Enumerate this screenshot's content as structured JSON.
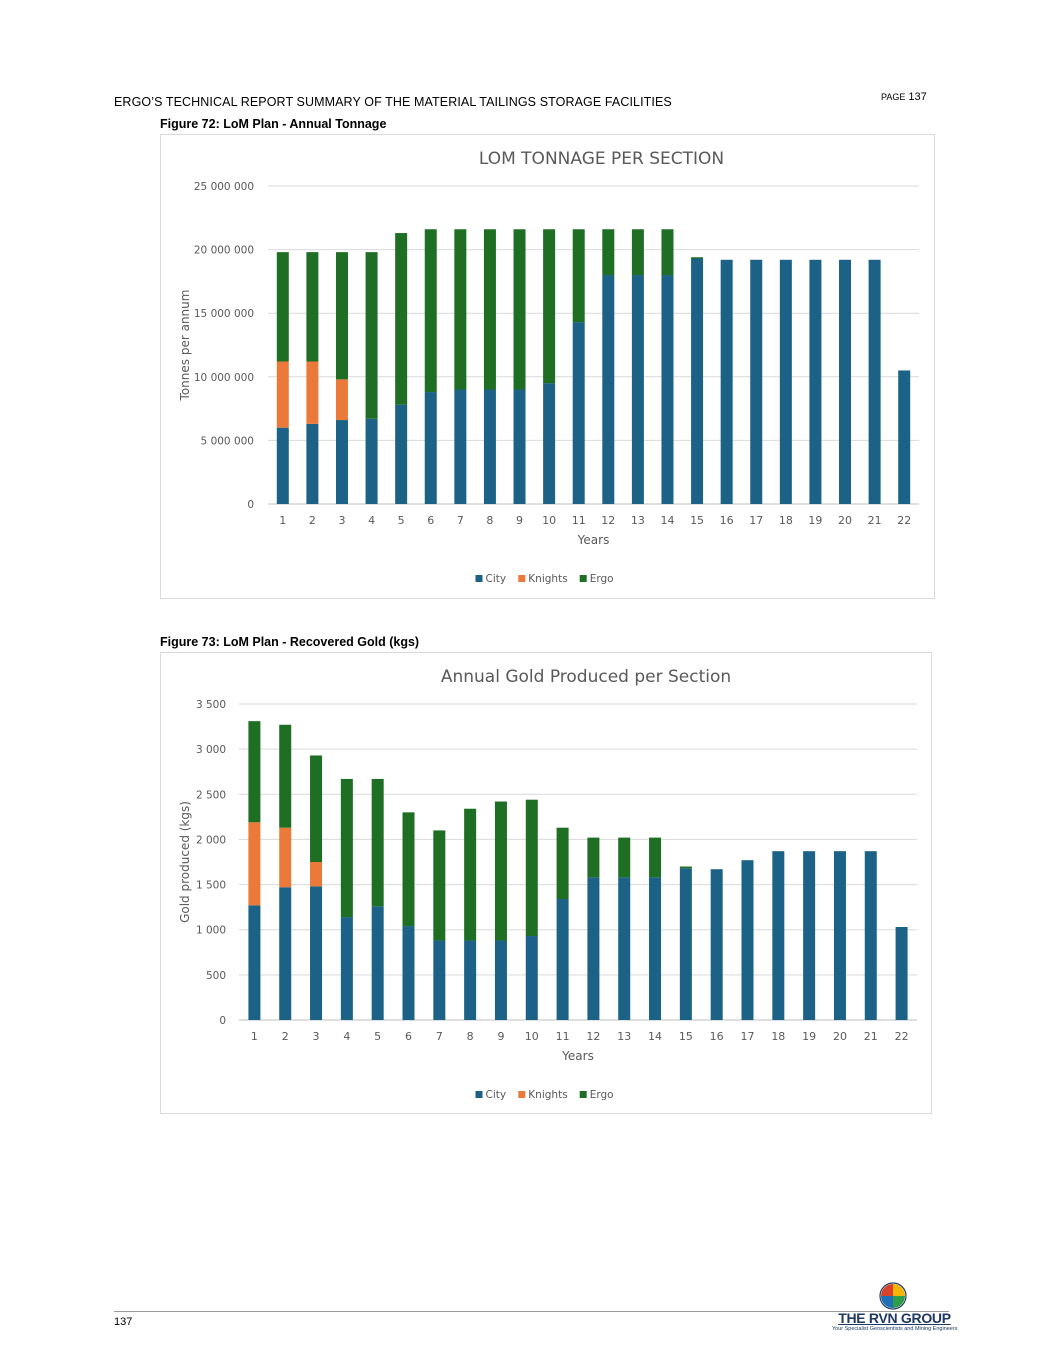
{
  "header": {
    "title": "ERGO’S TECHNICAL REPORT SUMMARY OF THE MATERIAL TAILINGS STORAGE FACILITIES",
    "page_word": "PAGE",
    "page_number": "137"
  },
  "footer": {
    "page_number": "137",
    "logo_text": "THE RVN GROUP",
    "logo_subtext": "Your Specialist Geoscientists and Mining Engineers"
  },
  "figures": [
    {
      "caption": "Figure 72:  LoM Plan - Annual Tonnage"
    },
    {
      "caption": "Figure 73:  LoM Plan - Recovered Gold (kgs)"
    }
  ],
  "colors": {
    "City": "#1b6286",
    "Knights": "#eb7a3a",
    "Ergo": "#1e6e23"
  },
  "chart_data": [
    {
      "type": "bar",
      "stacked": true,
      "title": "LOM TONNAGE PER SECTION",
      "xlabel": "Years",
      "ylabel": "Tonnes per annum",
      "ylim": [
        0,
        25000000
      ],
      "yticks": [
        "0",
        "5 000 000",
        "10 000 000",
        "15 000 000",
        "20 000 000",
        "25 000 000"
      ],
      "ytick_values": [
        0,
        5000000,
        10000000,
        15000000,
        20000000,
        25000000
      ],
      "categories": [
        "1",
        "2",
        "3",
        "4",
        "5",
        "6",
        "7",
        "8",
        "9",
        "10",
        "11",
        "12",
        "13",
        "14",
        "15",
        "16",
        "17",
        "18",
        "19",
        "20",
        "21",
        "22"
      ],
      "legend_position": "bottom",
      "grid": true,
      "series": [
        {
          "name": "City",
          "values": [
            6000000,
            6300000,
            6600000,
            6700000,
            7800000,
            8800000,
            9000000,
            9000000,
            9000000,
            9500000,
            14300000,
            18000000,
            18000000,
            18000000,
            19300000,
            19200000,
            19200000,
            19200000,
            19200000,
            19200000,
            19200000,
            10500000
          ]
        },
        {
          "name": "Knights",
          "values": [
            5200000,
            4900000,
            3200000,
            0,
            0,
            0,
            0,
            0,
            0,
            0,
            0,
            0,
            0,
            0,
            0,
            0,
            0,
            0,
            0,
            0,
            0,
            0
          ]
        },
        {
          "name": "Ergo",
          "values": [
            8600000,
            8600000,
            10000000,
            13100000,
            13500000,
            12800000,
            12600000,
            12600000,
            12600000,
            12100000,
            7300000,
            3600000,
            3600000,
            3600000,
            100000,
            0,
            0,
            0,
            0,
            0,
            0,
            0
          ]
        }
      ]
    },
    {
      "type": "bar",
      "stacked": true,
      "title": "Annual Gold Produced per Section",
      "xlabel": "Years",
      "ylabel": "Gold produced (kgs)",
      "ylim": [
        0,
        3500
      ],
      "yticks": [
        "0",
        "500",
        "1 000",
        "1 500",
        "2 000",
        "2 500",
        "3 000",
        "3 500"
      ],
      "ytick_values": [
        0,
        500,
        1000,
        1500,
        2000,
        2500,
        3000,
        3500
      ],
      "categories": [
        "1",
        "2",
        "3",
        "4",
        "5",
        "6",
        "7",
        "8",
        "9",
        "10",
        "11",
        "12",
        "13",
        "14",
        "15",
        "16",
        "17",
        "18",
        "19",
        "20",
        "21",
        "22"
      ],
      "legend_position": "bottom",
      "grid": true,
      "series": [
        {
          "name": "City",
          "values": [
            1270,
            1470,
            1480,
            1140,
            1260,
            1040,
            880,
            880,
            880,
            930,
            1340,
            1580,
            1580,
            1580,
            1680,
            1670,
            1770,
            1870,
            1870,
            1870,
            1870,
            1030
          ]
        },
        {
          "name": "Knights",
          "values": [
            920,
            660,
            270,
            0,
            0,
            0,
            0,
            0,
            0,
            0,
            0,
            0,
            0,
            0,
            0,
            0,
            0,
            0,
            0,
            0,
            0,
            0
          ]
        },
        {
          "name": "Ergo",
          "values": [
            1120,
            1140,
            1180,
            1530,
            1410,
            1260,
            1220,
            1460,
            1540,
            1510,
            790,
            440,
            440,
            440,
            20,
            0,
            0,
            0,
            0,
            0,
            0,
            0
          ]
        }
      ]
    }
  ]
}
